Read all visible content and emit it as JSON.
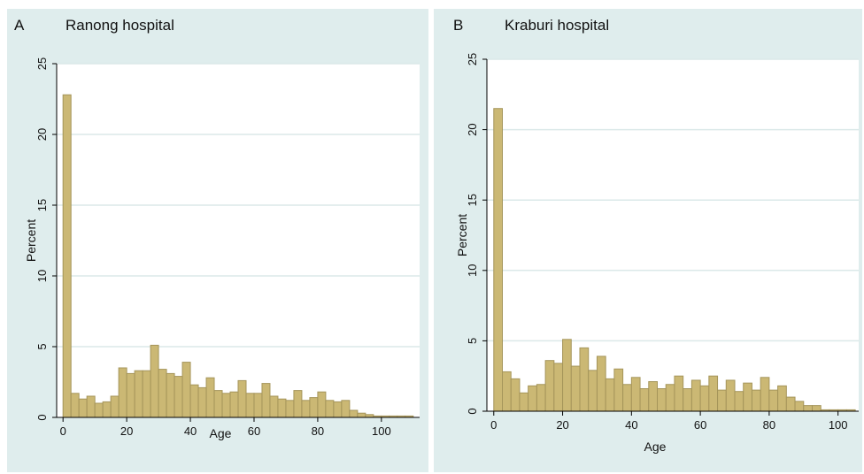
{
  "chart_data": [
    {
      "type": "bar",
      "panel_label": "A",
      "title": "Ranong hospital",
      "xlabel": "Age",
      "ylabel": "Percent",
      "xlim": [
        -2,
        112
      ],
      "ylim": [
        0,
        25
      ],
      "xticks": [
        0,
        20,
        40,
        60,
        80,
        100
      ],
      "yticks": [
        0,
        5,
        10,
        15,
        20,
        25
      ],
      "grid": true,
      "bar_color": "#cbb874",
      "bar_edge_color": "#a5955a",
      "bin_width": 2.5,
      "bin_starts": [
        0,
        2.5,
        5,
        7.5,
        10,
        12.5,
        15,
        17.5,
        20,
        22.5,
        25,
        27.5,
        30,
        32.5,
        35,
        37.5,
        40,
        42.5,
        45,
        47.5,
        50,
        52.5,
        55,
        57.5,
        60,
        62.5,
        65,
        67.5,
        70,
        72.5,
        75,
        77.5,
        80,
        82.5,
        85,
        87.5,
        90,
        92.5,
        95,
        97.5,
        100,
        102.5,
        105,
        107.5
      ],
      "values": [
        22.8,
        1.7,
        1.3,
        1.5,
        1.0,
        1.1,
        1.5,
        3.5,
        3.1,
        3.3,
        3.3,
        5.1,
        3.4,
        3.1,
        2.9,
        3.9,
        2.3,
        2.1,
        2.8,
        1.9,
        1.7,
        1.8,
        2.6,
        1.7,
        1.7,
        2.4,
        1.5,
        1.3,
        1.2,
        1.9,
        1.2,
        1.4,
        1.8,
        1.2,
        1.1,
        1.2,
        0.5,
        0.3,
        0.2,
        0.1,
        0.1,
        0.1,
        0.1,
        0.1
      ]
    },
    {
      "type": "bar",
      "panel_label": "B",
      "title": "Kraburi hospital",
      "xlabel": "Age",
      "ylabel": "Percent",
      "xlim": [
        -2,
        106
      ],
      "ylim": [
        0,
        25
      ],
      "xticks": [
        0,
        20,
        40,
        60,
        80,
        100
      ],
      "yticks": [
        0,
        5,
        10,
        15,
        20,
        25
      ],
      "grid": true,
      "bar_color": "#cbb874",
      "bar_edge_color": "#a5955a",
      "bin_width": 2.5,
      "bin_starts": [
        0,
        2.5,
        5,
        7.5,
        10,
        12.5,
        15,
        17.5,
        20,
        22.5,
        25,
        27.5,
        30,
        32.5,
        35,
        37.5,
        40,
        42.5,
        45,
        47.5,
        50,
        52.5,
        55,
        57.5,
        60,
        62.5,
        65,
        67.5,
        70,
        72.5,
        75,
        77.5,
        80,
        82.5,
        85,
        87.5,
        90,
        92.5,
        95,
        97.5,
        100,
        102.5
      ],
      "values": [
        21.5,
        2.8,
        2.3,
        1.3,
        1.8,
        1.9,
        3.6,
        3.4,
        5.1,
        3.2,
        4.5,
        2.9,
        3.9,
        2.3,
        3.0,
        1.9,
        2.4,
        1.6,
        2.1,
        1.6,
        1.9,
        2.5,
        1.6,
        2.2,
        1.8,
        2.5,
        1.5,
        2.2,
        1.4,
        2.0,
        1.5,
        2.4,
        1.5,
        1.8,
        1.0,
        0.7,
        0.4,
        0.4,
        0.1,
        0.1,
        0.1,
        0.1
      ]
    }
  ]
}
